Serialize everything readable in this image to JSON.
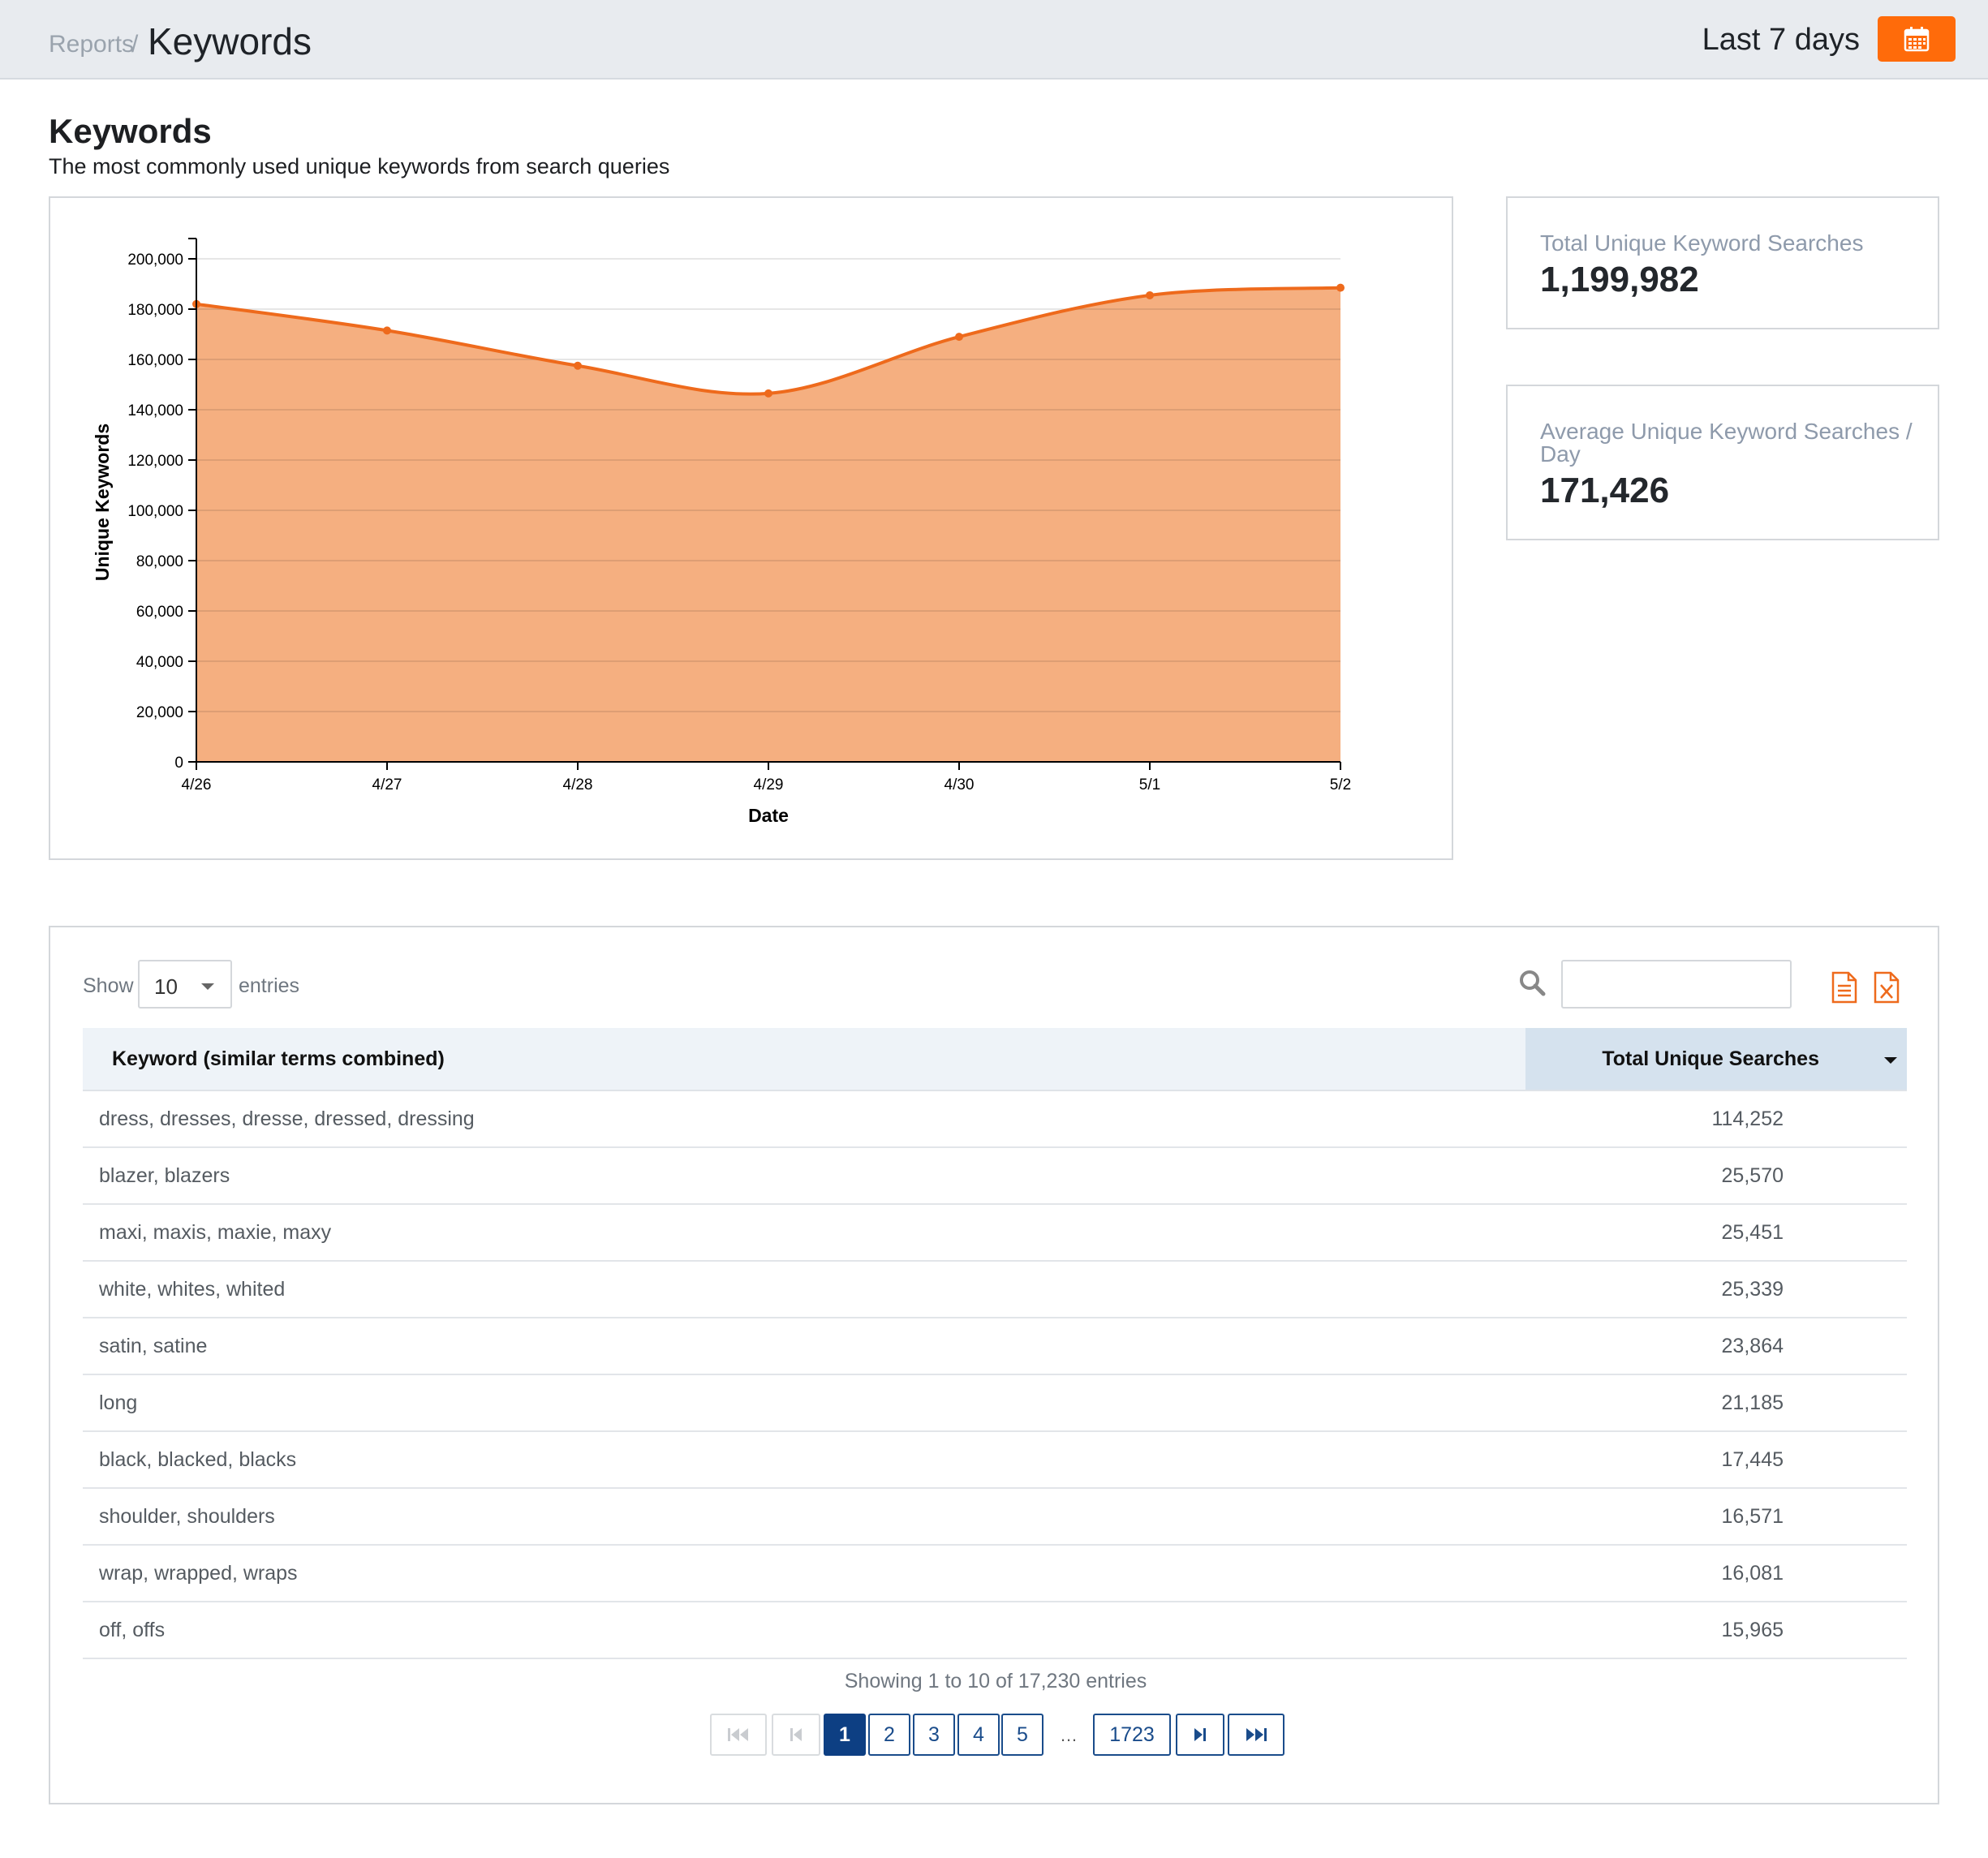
{
  "header": {
    "breadcrumb_root": "Reports",
    "breadcrumb_sep": "/",
    "breadcrumb_current": "Keywords",
    "date_range": "Last 7 days",
    "calendar_icon": "calendar-icon",
    "accent_color": "#ff6b0a"
  },
  "page": {
    "title": "Keywords",
    "subtitle": "The most commonly used unique keywords from search queries"
  },
  "chart_data": {
    "type": "area",
    "x": [
      "4/26",
      "4/27",
      "4/28",
      "4/29",
      "4/30",
      "5/1",
      "5/2"
    ],
    "series": [
      {
        "values": [
          182000,
          171500,
          157500,
          146500,
          169000,
          185500,
          188500
        ]
      }
    ],
    "xlabel": "Date",
    "ylabel": "Unique Keywords",
    "ylim": [
      0,
      200000
    ],
    "yticks": [
      "0",
      "20,000",
      "40,000",
      "60,000",
      "80,000",
      "100,000",
      "120,000",
      "140,000",
      "160,000",
      "180,000",
      "200,000"
    ],
    "grid": true,
    "line_color": "#ee6a1c",
    "fill_color": "#f5af80"
  },
  "stats": {
    "total_label": "Total Unique Keyword Searches",
    "total_value": "1,199,982",
    "avg_label_line1": "Average Unique Keyword Searches /",
    "avg_label_line2": "Day",
    "avg_value": "171,426"
  },
  "table": {
    "show_label": "Show",
    "page_length": "10",
    "entries_label": "entries",
    "search_icon": "search-icon",
    "search_value": "",
    "export_icons": [
      "document-export-icon",
      "excel-export-icon"
    ],
    "columns": [
      "Keyword (similar terms combined)",
      "Total Unique Searches"
    ],
    "rows": [
      {
        "keyword": "dress, dresses, dresse, dressed, dressing",
        "total": "114,252"
      },
      {
        "keyword": "blazer, blazers",
        "total": "25,570"
      },
      {
        "keyword": "maxi, maxis, maxie, maxy",
        "total": "25,451"
      },
      {
        "keyword": "white, whites, whited",
        "total": "25,339"
      },
      {
        "keyword": "satin, satine",
        "total": "23,864"
      },
      {
        "keyword": "long",
        "total": "21,185"
      },
      {
        "keyword": "black, blacked, blacks",
        "total": "17,445"
      },
      {
        "keyword": "shoulder, shoulders",
        "total": "16,571"
      },
      {
        "keyword": "wrap, wrapped, wraps",
        "total": "16,081"
      },
      {
        "keyword": "off, offs",
        "total": "15,965"
      }
    ],
    "info": "Showing 1 to 10 of 17,230 entries",
    "pagination": {
      "pages": [
        "1",
        "2",
        "3",
        "4",
        "5"
      ],
      "ellipsis": "…",
      "last_page": "1723",
      "active": "1"
    }
  }
}
